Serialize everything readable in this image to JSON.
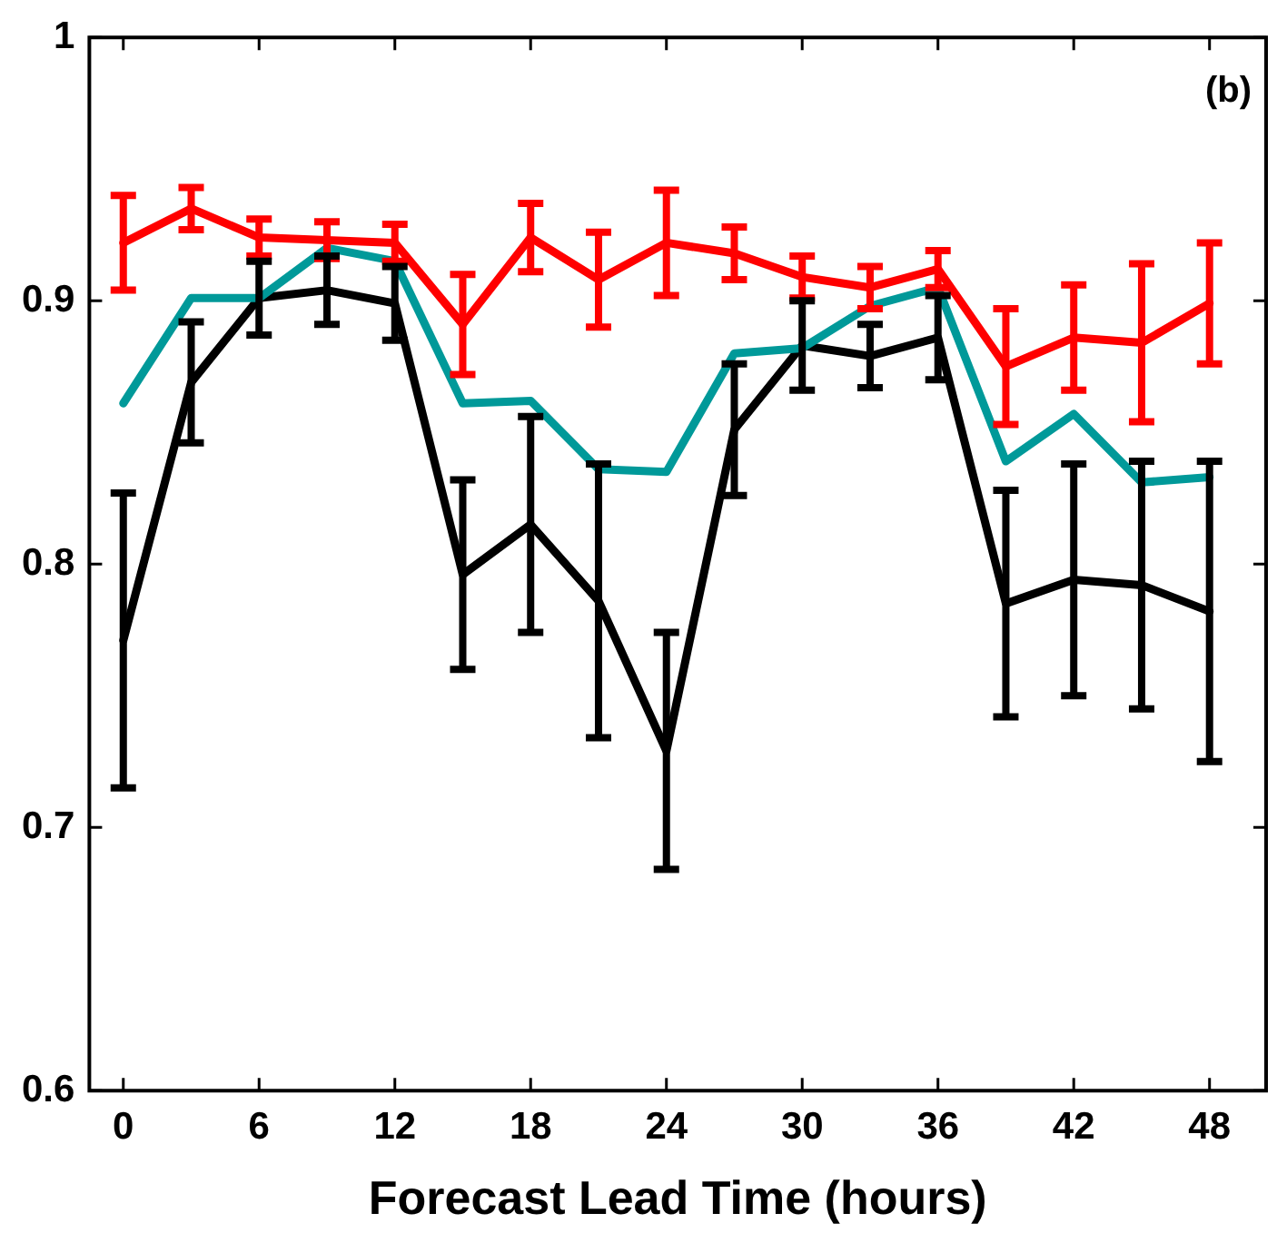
{
  "chart_data": {
    "type": "line",
    "xlabel": "Forecast Lead Time (hours)",
    "annotations": [
      "(b)"
    ],
    "x": [
      0,
      3,
      6,
      9,
      12,
      15,
      18,
      21,
      24,
      27,
      30,
      33,
      36,
      39,
      42,
      45,
      48
    ],
    "series": [
      {
        "color": "#ff0000",
        "values": [
          0.922,
          0.935,
          0.924,
          0.923,
          0.922,
          0.891,
          0.924,
          0.908,
          0.922,
          0.918,
          0.909,
          0.905,
          0.912,
          0.875,
          0.886,
          0.884,
          0.899
        ],
        "errors": [
          0.018,
          0.008,
          0.007,
          0.007,
          0.007,
          0.019,
          0.013,
          0.018,
          0.02,
          0.01,
          0.008,
          0.008,
          0.007,
          0.022,
          0.02,
          0.03,
          0.023
        ]
      },
      {
        "color": "#009999",
        "values": [
          0.861,
          0.901,
          0.901,
          0.92,
          0.915,
          0.861,
          0.862,
          0.836,
          0.835,
          0.88,
          0.882,
          0.898,
          0.905,
          0.839,
          0.857,
          0.831,
          0.833
        ]
      },
      {
        "color": "#000000",
        "values": [
          0.771,
          0.869,
          0.901,
          0.904,
          0.899,
          0.796,
          0.815,
          0.786,
          0.729,
          0.851,
          0.883,
          0.879,
          0.886,
          0.785,
          0.794,
          0.792,
          0.782
        ],
        "errors": [
          0.056,
          0.023,
          0.014,
          0.013,
          0.014,
          0.036,
          0.041,
          0.052,
          0.045,
          0.025,
          0.017,
          0.012,
          0.016,
          0.043,
          0.044,
          0.047,
          0.057
        ]
      }
    ],
    "xlim": [
      -1.5,
      50.5
    ],
    "xticks": [
      0,
      6,
      12,
      18,
      24,
      30,
      36,
      42,
      48
    ],
    "ylim": [
      0.6,
      1
    ],
    "yticks": [
      0.6,
      0.7,
      0.8,
      0.9,
      {
        "value": 1,
        "label": "1"
      }
    ],
    "grid": false,
    "legend": false,
    "marker": "none",
    "line_style": "solid"
  }
}
